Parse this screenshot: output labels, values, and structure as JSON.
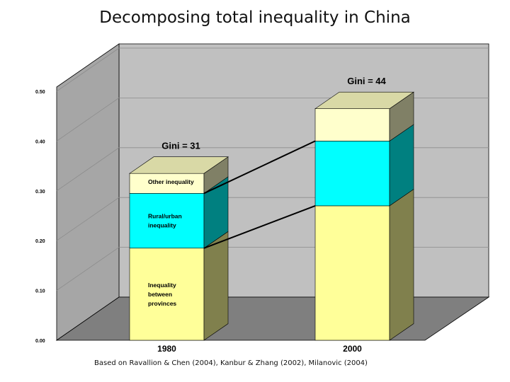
{
  "slide": {
    "title": "Decomposing total inequality in China",
    "footnote": "Based on Ravallion & Chen (2004), Kanbur & Zhang (2002), Milanovic (2004)"
  },
  "chart_data": {
    "type": "bar",
    "stacked": true,
    "three_d": true,
    "categories": [
      "1980",
      "2000"
    ],
    "series": [
      {
        "name": "Inequality between provinces",
        "values": [
          0.185,
          0.27
        ],
        "color": "#ffff99",
        "side_color": "#80804d"
      },
      {
        "name": "Rural/urban inequality",
        "values": [
          0.11,
          0.13
        ],
        "color": "#00ffff",
        "side_color": "#008080"
      },
      {
        "name": "Other inequality",
        "values": [
          0.04,
          0.065
        ],
        "color": "#ffffcc",
        "side_color": "#808066"
      }
    ],
    "segment_labels": [
      [
        "Inequality between provinces",
        "Rural/urban inequality",
        "Other inequality"
      ],
      [
        "",
        "",
        ""
      ]
    ],
    "top_labels": [
      "Gini = 31",
      "Gini = 44"
    ],
    "ylim": [
      0,
      0.5
    ],
    "yticks": [
      "0.00",
      "0.10",
      "0.20",
      "0.30",
      "0.40",
      "0.50"
    ],
    "grid": true,
    "legend": "none",
    "colors": {
      "wall": "#c0c0c0",
      "floor": "#7f7f7f",
      "grid": "#8c8c8c"
    }
  }
}
